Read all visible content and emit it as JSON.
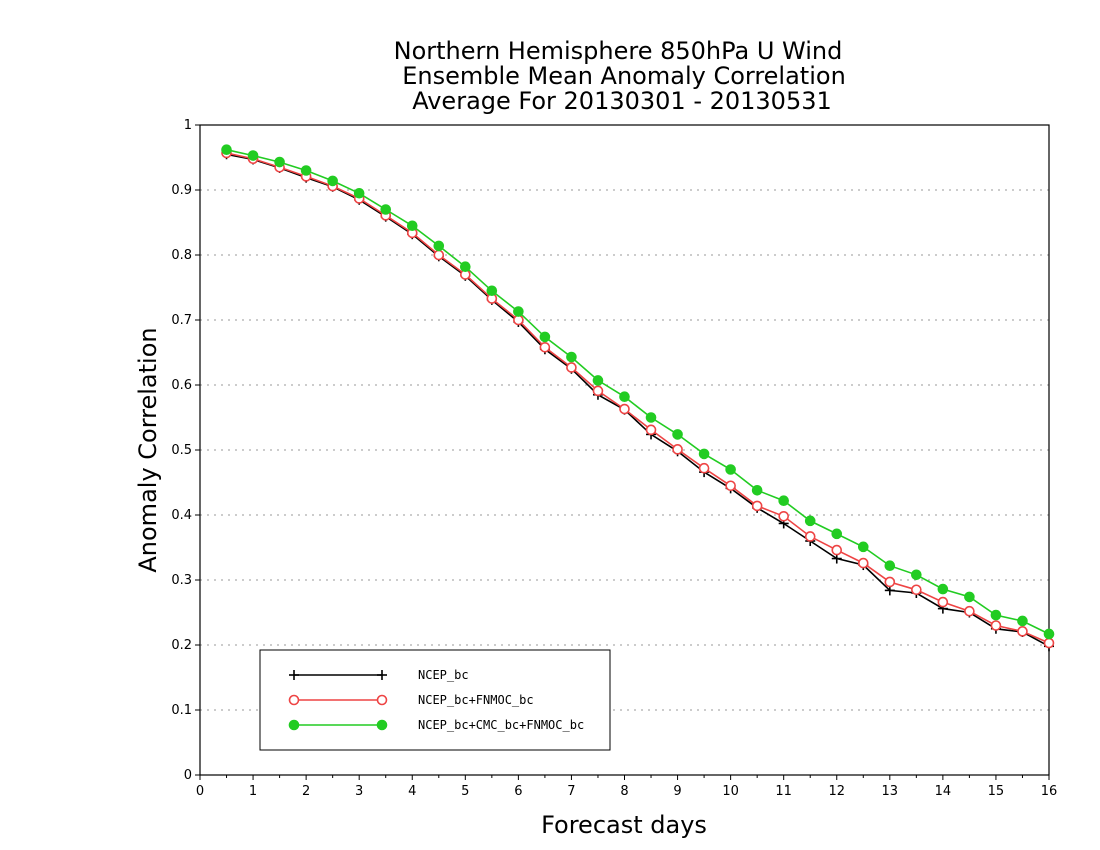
{
  "chart_data": {
    "type": "line",
    "title_lines": [
      "Northern Hemisphere 850hPa U Wind",
      "Ensemble Mean Anomaly Correlation",
      "Average For 20130301 - 20130531"
    ],
    "xlabel": "Forecast days",
    "ylabel": "Anomaly Correlation",
    "xlim": [
      0,
      16
    ],
    "ylim": [
      0,
      1
    ],
    "xticks": [
      "0",
      "1",
      "2",
      "3",
      "4",
      "5",
      "6",
      "7",
      "8",
      "9",
      "10",
      "11",
      "12",
      "13",
      "14",
      "15",
      "16"
    ],
    "yticks": [
      "0",
      "0.1",
      "0.2",
      "0.3",
      "0.4",
      "0.5",
      "0.6",
      "0.7",
      "0.8",
      "0.9",
      "1"
    ],
    "grid": true,
    "legend_position": "bottom-left",
    "x": [
      0.5,
      1,
      1.5,
      2,
      2.5,
      3,
      3.5,
      4,
      4.5,
      5,
      5.5,
      6,
      6.5,
      7,
      7.5,
      8,
      8.5,
      9,
      9.5,
      10,
      10.5,
      11,
      11.5,
      12,
      12.5,
      13,
      13.5,
      14,
      14.5,
      15,
      15.5,
      16
    ],
    "series": [
      {
        "name": "NCEP_bc",
        "color": "#000000",
        "marker": "plus",
        "values": [
          0.955,
          0.947,
          0.934,
          0.919,
          0.905,
          0.885,
          0.859,
          0.832,
          0.798,
          0.768,
          0.731,
          0.697,
          0.655,
          0.625,
          0.585,
          0.562,
          0.524,
          0.498,
          0.466,
          0.441,
          0.411,
          0.387,
          0.36,
          0.333,
          0.323,
          0.284,
          0.28,
          0.256,
          0.25,
          0.225,
          0.22,
          0.198
        ]
      },
      {
        "name": "NCEP_bc+FNMOC_bc",
        "color": "#ee4444",
        "marker": "open-circle",
        "values": [
          0.957,
          0.948,
          0.935,
          0.921,
          0.906,
          0.887,
          0.861,
          0.834,
          0.8,
          0.77,
          0.733,
          0.7,
          0.658,
          0.627,
          0.591,
          0.563,
          0.531,
          0.501,
          0.472,
          0.445,
          0.414,
          0.398,
          0.367,
          0.346,
          0.326,
          0.297,
          0.285,
          0.266,
          0.252,
          0.23,
          0.221,
          0.203
        ]
      },
      {
        "name": "NCEP_bc+CMC_bc+FNMOC_bc",
        "color": "#22cc22",
        "marker": "filled-circle",
        "values": [
          0.962,
          0.953,
          0.943,
          0.93,
          0.914,
          0.895,
          0.87,
          0.845,
          0.814,
          0.782,
          0.745,
          0.713,
          0.674,
          0.643,
          0.607,
          0.582,
          0.55,
          0.524,
          0.494,
          0.47,
          0.438,
          0.422,
          0.391,
          0.371,
          0.351,
          0.322,
          0.308,
          0.286,
          0.274,
          0.246,
          0.237,
          0.217
        ]
      }
    ]
  }
}
